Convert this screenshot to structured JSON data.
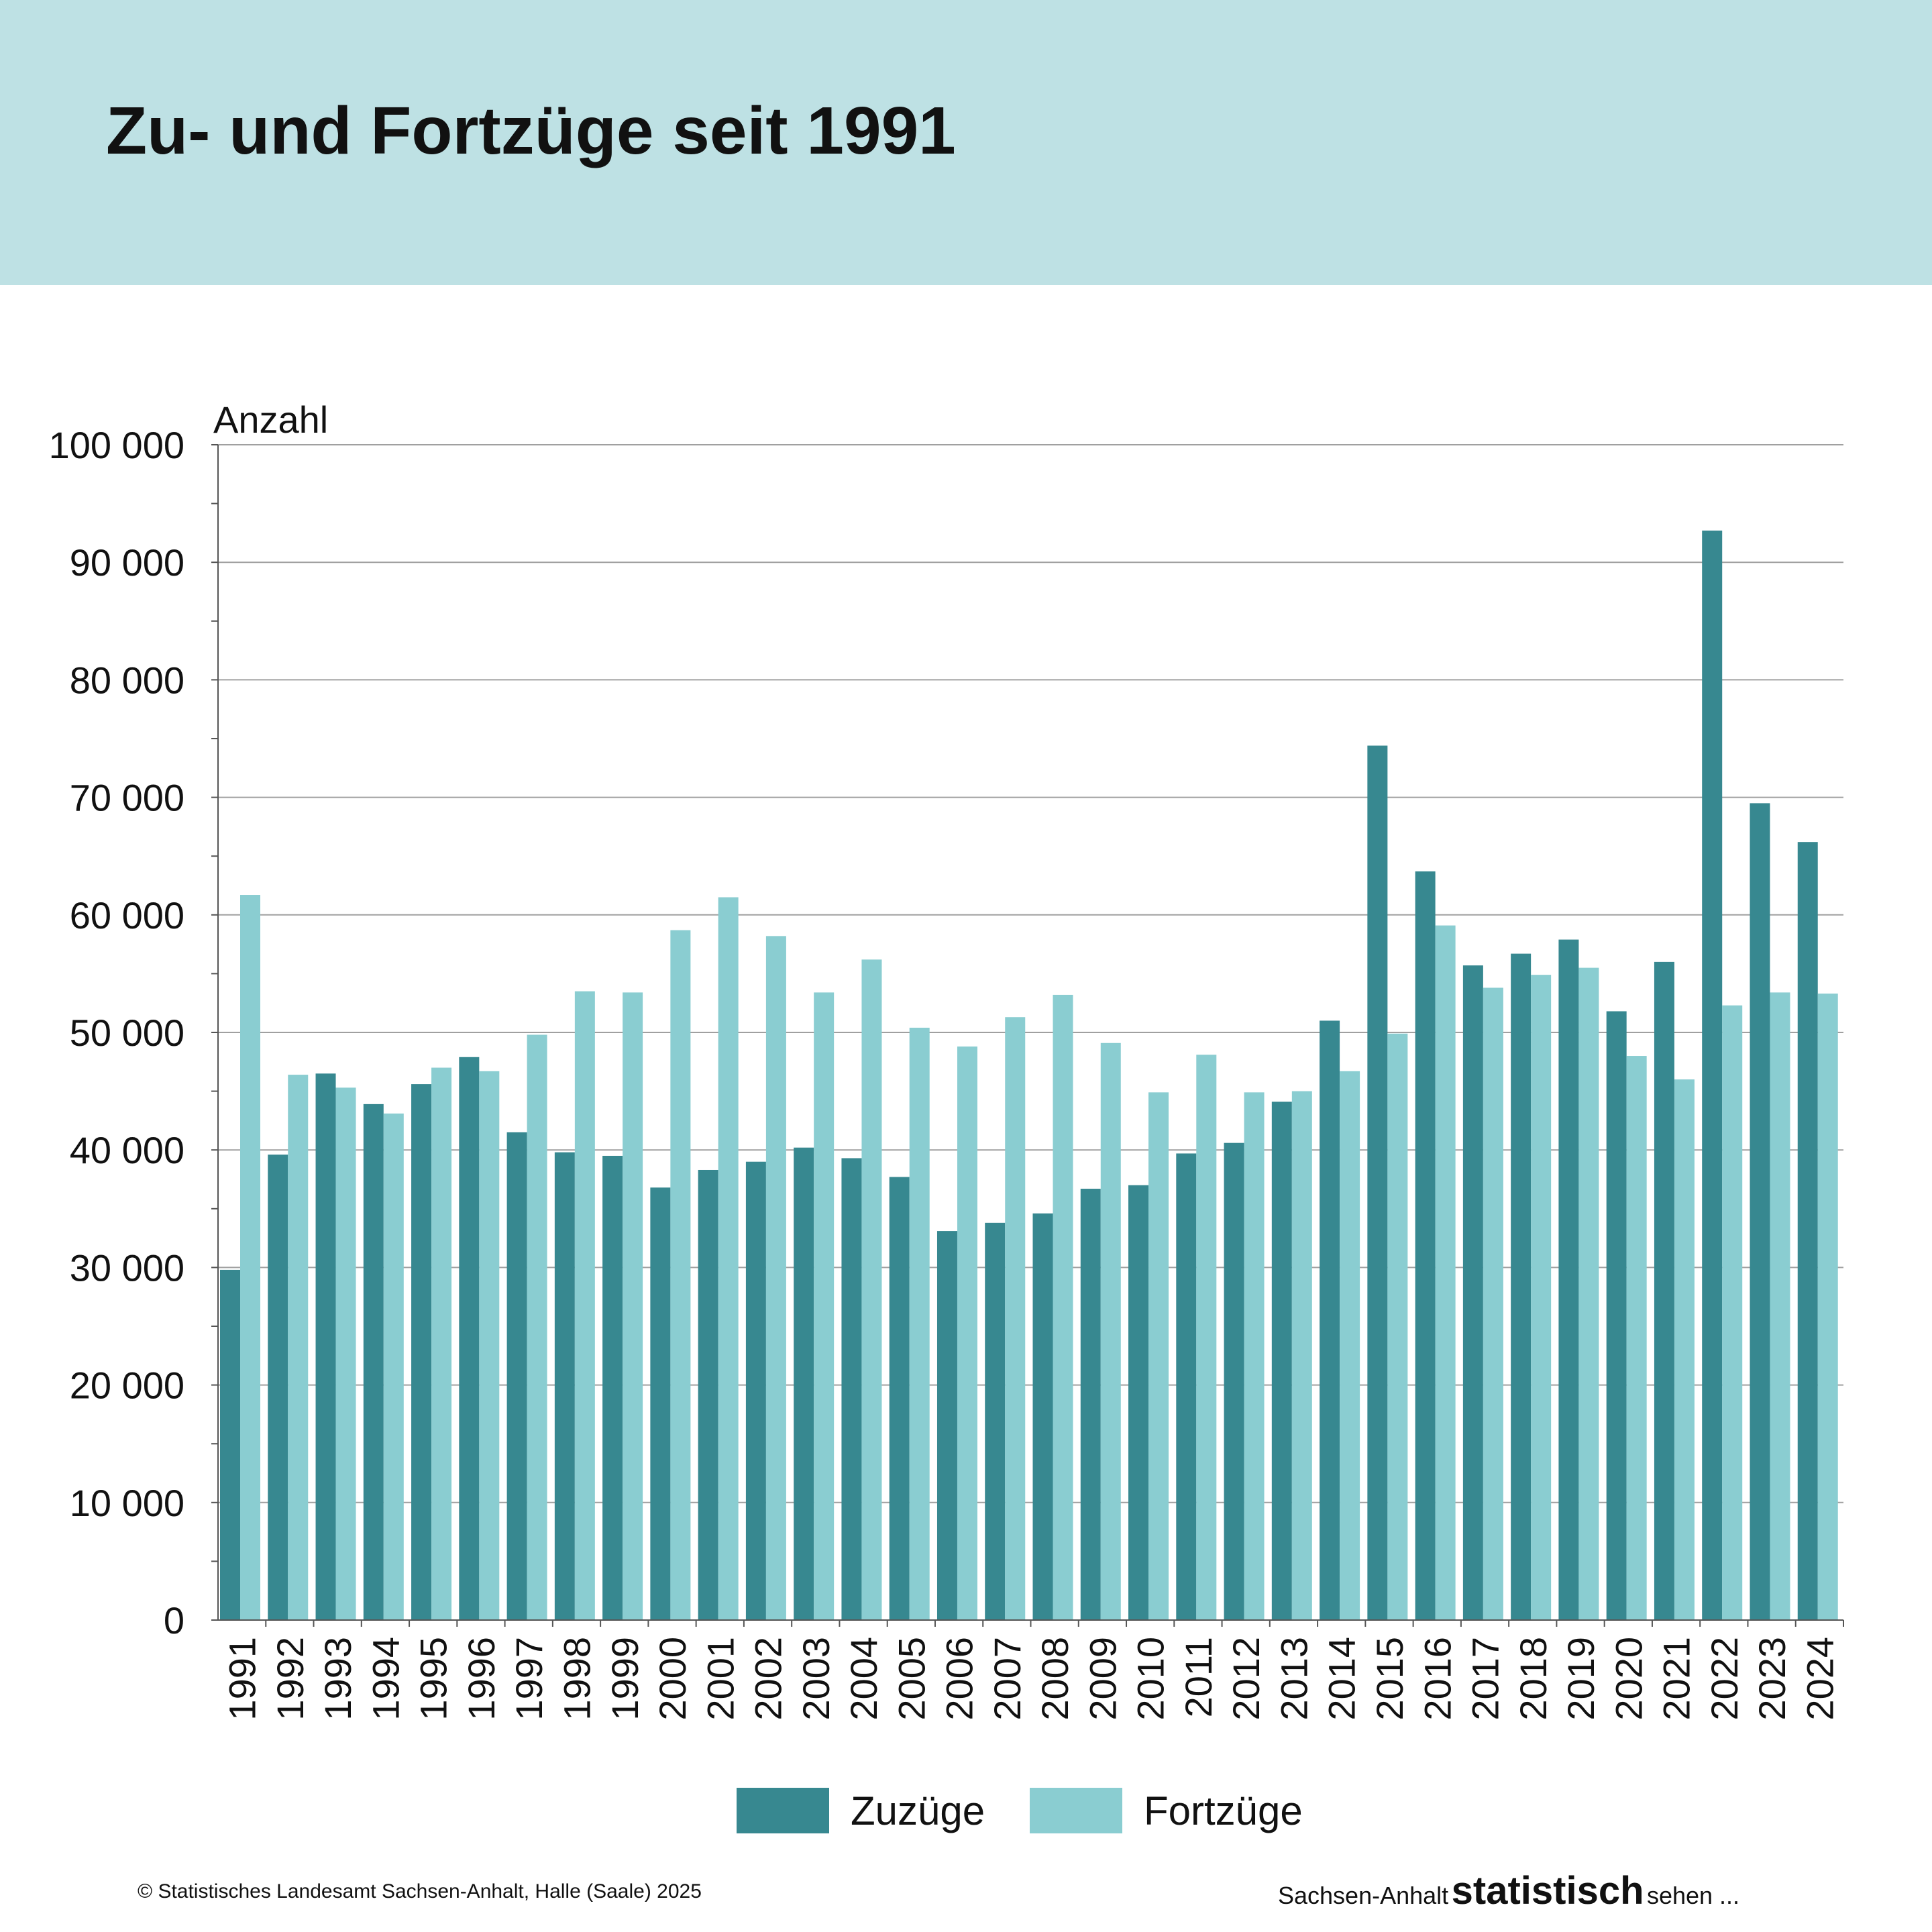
{
  "header": {
    "title": "Zu- und Fortzüge seit 1991"
  },
  "footer": {
    "copyright": "© Statistisches Landesamt Sachsen-Anhalt, Halle (Saale) 2025",
    "brand_prefix": "Sachsen-Anhalt",
    "brand_bold": "statistisch",
    "brand_suffix": "sehen ..."
  },
  "colors": {
    "header_band": "#bee1e4",
    "zuzuege": "#378890",
    "fortzuege": "#8acdd1",
    "grid": "#a0a0a0",
    "axis": "#555555"
  },
  "chart_data": {
    "type": "bar",
    "ylabel": "Anzahl",
    "ylim": [
      0,
      100000
    ],
    "yticks": [
      0,
      10000,
      20000,
      30000,
      40000,
      50000,
      60000,
      70000,
      80000,
      90000,
      100000
    ],
    "ytick_labels": [
      "0",
      "10 000",
      "20 000",
      "30 000",
      "40 000",
      "50 000",
      "60 000",
      "70 000",
      "80 000",
      "90 000",
      "100 000"
    ],
    "grid": true,
    "legend_position": "bottom-center",
    "categories": [
      "1991",
      "1992",
      "1993",
      "1994",
      "1995",
      "1996",
      "1997",
      "1998",
      "1999",
      "2000",
      "2001",
      "2002",
      "2003",
      "2004",
      "2005",
      "2006",
      "2007",
      "2008",
      "2009",
      "2010",
      "2011",
      "2012",
      "2013",
      "2014",
      "2015",
      "2016",
      "2017",
      "2018",
      "2019",
      "2020",
      "2021",
      "2022",
      "2023",
      "2024"
    ],
    "series": [
      {
        "name": "Zuzüge",
        "color": "#378890",
        "values": [
          29800,
          39600,
          46500,
          43900,
          45600,
          47900,
          41500,
          39800,
          39500,
          36800,
          38300,
          39000,
          40200,
          39300,
          37700,
          33100,
          33800,
          34600,
          36700,
          37000,
          39700,
          40600,
          44100,
          51000,
          74400,
          63700,
          55700,
          56700,
          57900,
          51800,
          56000,
          92700,
          69500,
          66200
        ]
      },
      {
        "name": "Fortzüge",
        "color": "#8acdd1",
        "values": [
          61700,
          46400,
          45300,
          43100,
          47000,
          46700,
          49800,
          53500,
          53400,
          58700,
          61500,
          58200,
          53400,
          56200,
          50400,
          48800,
          51300,
          53200,
          49100,
          44900,
          48100,
          44900,
          45000,
          46700,
          49900,
          59100,
          53800,
          54900,
          55500,
          48000,
          46000,
          52300,
          53400,
          53300
        ]
      }
    ]
  }
}
